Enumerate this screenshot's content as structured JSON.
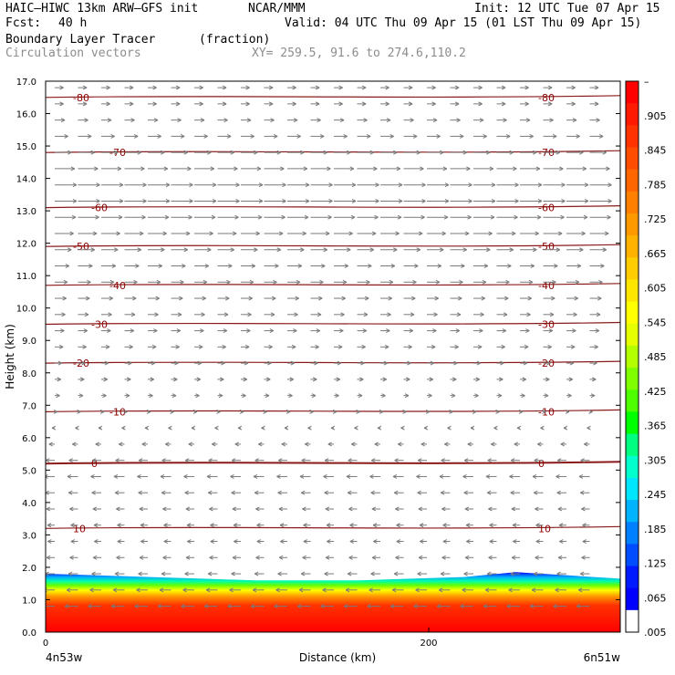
{
  "header": {
    "model": "HAIC–HIWC 13km ARW–GFS init",
    "org": "NCAR/MMM",
    "init": "Init: 12 UTC Tue 07 Apr 15",
    "fcst_label": "Fcst:",
    "fcst_value": "40 h",
    "valid": "Valid: 04 UTC Thu 09 Apr 15 (01 LST Thu 09 Apr 15)",
    "field": "Boundary Layer Tracer",
    "units": "(fraction)",
    "vectors": "Circulation vectors",
    "xy": "XY= 259.5, 91.6 to 274.6,110.2"
  },
  "chart_data": {
    "type": "heatmap",
    "ylabel": "Height (km)",
    "xlabel": "Distance (km)",
    "ylim": [
      0,
      17
    ],
    "xlim": [
      0,
      300
    ],
    "y_ticks": [
      "0.0",
      "1.0",
      "2.0",
      "3.0",
      "4.0",
      "5.0",
      "6.0",
      "7.0",
      "8.0",
      "9.0",
      "10.0",
      "11.0",
      "12.0",
      "13.0",
      "14.0",
      "15.0",
      "16.0",
      "17.0"
    ],
    "x_ticks": [
      {
        "value": 0,
        "label": "0"
      },
      {
        "value": 200,
        "label": "200"
      }
    ],
    "x_end_labels": {
      "left": "4n53w",
      "right": "6n51w"
    },
    "colorbar": {
      "labels": [
        "–",
        ".905",
        ".845",
        ".785",
        ".725",
        ".665",
        ".605",
        ".545",
        ".485",
        ".425",
        ".365",
        ".305",
        ".245",
        ".185",
        ".125",
        ".065",
        ".005"
      ],
      "colors": [
        "#ff0000",
        "#ff1a00",
        "#ff3300",
        "#ff4d00",
        "#ff6600",
        "#ff8000",
        "#ff9900",
        "#ffb300",
        "#ffcc00",
        "#ffe600",
        "#ffff00",
        "#e6ff00",
        "#b3ff00",
        "#80ff00",
        "#4dff00",
        "#00ff00",
        "#00ff80",
        "#00ffcc",
        "#00e6ff",
        "#00b3ff",
        "#0080ff",
        "#004dff",
        "#001aff",
        "#0000ff",
        "#ffffff"
      ]
    },
    "temperature_contours": [
      {
        "label": "10",
        "y": 3.2
      },
      {
        "label": "0",
        "y": 5.2
      },
      {
        "label": "-10",
        "y": 6.8
      },
      {
        "label": "-20",
        "y": 8.3
      },
      {
        "label": "-30",
        "y": 9.5
      },
      {
        "label": "-40",
        "y": 10.7
      },
      {
        "label": "-50",
        "y": 11.9
      },
      {
        "label": "-60",
        "y": 13.1
      },
      {
        "label": "-70",
        "y": 14.8
      },
      {
        "label": "-80",
        "y": 16.5
      }
    ],
    "tracer_top_km": [
      1.8,
      1.75,
      1.7,
      1.65,
      1.6,
      1.6,
      1.6,
      1.65,
      1.7,
      1.85,
      1.75,
      1.65
    ],
    "wind_u_by_height": [
      {
        "h": 0.8,
        "u": -0.6
      },
      {
        "h": 2,
        "u": -0.4
      },
      {
        "h": 3,
        "u": -0.3
      },
      {
        "h": 4,
        "u": -0.4
      },
      {
        "h": 5,
        "u": -0.5
      },
      {
        "h": 6,
        "u": -0.2
      },
      {
        "h": 7,
        "u": 0.2
      },
      {
        "h": 8,
        "u": 0.3
      },
      {
        "h": 9,
        "u": 0.4
      },
      {
        "h": 10,
        "u": 0.5
      },
      {
        "h": 11,
        "u": 0.6
      },
      {
        "h": 12,
        "u": 0.8
      },
      {
        "h": 13,
        "u": 1.0
      },
      {
        "h": 14,
        "u": 1.0
      },
      {
        "h": 15,
        "u": 0.7
      },
      {
        "h": 16,
        "u": 0.4
      }
    ]
  }
}
